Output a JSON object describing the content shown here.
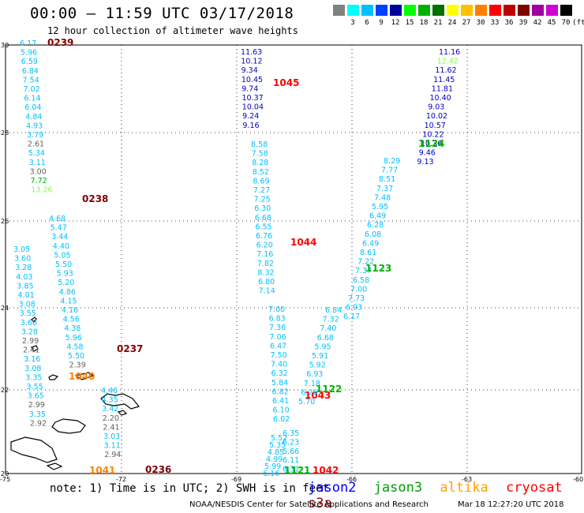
{
  "header": {
    "title": "00:00 – 11:59 UTC 03/17/2018",
    "subtitle": "12 hour collection of altimeter wave heights"
  },
  "colorbar": {
    "unit": "(ft)",
    "stops": [
      {
        "label": "",
        "color": "#808080"
      },
      {
        "label": "3",
        "color": "#00ffff"
      },
      {
        "label": "6",
        "color": "#00bfff"
      },
      {
        "label": "9",
        "color": "#0040ff"
      },
      {
        "label": "12",
        "color": "#0000a0"
      },
      {
        "label": "15",
        "color": "#00ff00"
      },
      {
        "label": "18",
        "color": "#00b000"
      },
      {
        "label": "21",
        "color": "#007000"
      },
      {
        "label": "24",
        "color": "#ffff00"
      },
      {
        "label": "27",
        "color": "#ffc000"
      },
      {
        "label": "30",
        "color": "#ff8000"
      },
      {
        "label": "33",
        "color": "#ff0000"
      },
      {
        "label": "36",
        "color": "#c00000"
      },
      {
        "label": "39",
        "color": "#800000"
      },
      {
        "label": "42",
        "color": "#a000a0"
      },
      {
        "label": "45",
        "color": "#d000d0"
      },
      {
        "label": "70",
        "color": "#000000"
      }
    ]
  },
  "axes": {
    "lon_ticks": [
      "-75",
      "-72",
      "-69",
      "-66",
      "-63",
      "-60"
    ],
    "lat_ticks": [
      "30",
      "28",
      "26",
      "24",
      "22",
      "20"
    ]
  },
  "tracks": [
    {
      "pass": "0239",
      "pass_color": "#800000",
      "points": [
        {
          "v": "6.17",
          "c": "#00bfff"
        },
        {
          "v": "5.96",
          "c": "#00bfff"
        },
        {
          "v": "6.59",
          "c": "#00bfff"
        },
        {
          "v": "6.84",
          "c": "#00bfff"
        },
        {
          "v": "7.54",
          "c": "#00bfff"
        },
        {
          "v": "7.02",
          "c": "#00bfff"
        },
        {
          "v": "6.14",
          "c": "#00bfff"
        },
        {
          "v": "6.04",
          "c": "#00bfff"
        },
        {
          "v": "4.84",
          "c": "#00bfff"
        },
        {
          "v": "4.93",
          "c": "#00bfff"
        },
        {
          "v": "3.79",
          "c": "#00bfff"
        },
        {
          "v": "2.61",
          "c": "#606060"
        },
        {
          "v": "5.34",
          "c": "#00bfff"
        },
        {
          "v": "3.11",
          "c": "#00bfff"
        },
        {
          "v": "3.00",
          "c": "#606060"
        },
        {
          "v": "7.72",
          "c": "#00b000"
        },
        {
          "v": "13.26",
          "c": "#80ff40"
        }
      ]
    },
    {
      "pass": "0238",
      "pass_color": "#800000",
      "points": [
        {
          "v": "4.68",
          "c": "#00bfff"
        },
        {
          "v": "5.47",
          "c": "#00bfff"
        },
        {
          "v": "3.44",
          "c": "#00bfff"
        },
        {
          "v": "4.40",
          "c": "#00bfff"
        },
        {
          "v": "5.05",
          "c": "#00bfff"
        },
        {
          "v": "5.50",
          "c": "#00bfff"
        },
        {
          "v": "5.93",
          "c": "#00bfff"
        },
        {
          "v": "5.20",
          "c": "#00bfff"
        },
        {
          "v": "4.86",
          "c": "#00bfff"
        },
        {
          "v": "4.15",
          "c": "#00bfff"
        },
        {
          "v": "4.16",
          "c": "#00bfff"
        },
        {
          "v": "4.56",
          "c": "#00bfff"
        },
        {
          "v": "4.38",
          "c": "#00bfff"
        },
        {
          "v": "5.96",
          "c": "#00bfff"
        },
        {
          "v": "4.58",
          "c": "#00bfff"
        },
        {
          "v": "5.50",
          "c": "#00bfff"
        },
        {
          "v": "2.39",
          "c": "#606060"
        }
      ]
    },
    {
      "pass": "0237",
      "pass_color": "#800000",
      "points": [
        {
          "v": "3.05",
          "c": "#00bfff"
        },
        {
          "v": "3.60",
          "c": "#00bfff"
        },
        {
          "v": "3.28",
          "c": "#00bfff"
        },
        {
          "v": "4.03",
          "c": "#00bfff"
        },
        {
          "v": "3.85",
          "c": "#00bfff"
        },
        {
          "v": "4.01",
          "c": "#00bfff"
        },
        {
          "v": "3.08",
          "c": "#00bfff"
        },
        {
          "v": "3.55",
          "c": "#00bfff"
        },
        {
          "v": "3.60",
          "c": "#00bfff"
        },
        {
          "v": "3.28",
          "c": "#00bfff"
        },
        {
          "v": "2.99",
          "c": "#606060"
        },
        {
          "v": "2.41",
          "c": "#606060"
        },
        {
          "v": "3.16",
          "c": "#00bfff"
        },
        {
          "v": "3.08",
          "c": "#00bfff"
        },
        {
          "v": "3.35",
          "c": "#00bfff"
        },
        {
          "v": "3.55",
          "c": "#00bfff"
        },
        {
          "v": "3.65",
          "c": "#00bfff"
        },
        {
          "v": "2.99",
          "c": "#606060"
        },
        {
          "v": "3.35",
          "c": "#00bfff"
        },
        {
          "v": "2.92",
          "c": "#606060"
        }
      ]
    },
    {
      "pass": "0236",
      "pass_color": "#800000",
      "points": [
        {
          "v": "4.46",
          "c": "#00bfff"
        },
        {
          "v": "4.35",
          "c": "#00bfff"
        },
        {
          "v": "3.42",
          "c": "#00bfff"
        },
        {
          "v": "2.20",
          "c": "#606060"
        },
        {
          "v": "2.41",
          "c": "#606060"
        },
        {
          "v": "3.03",
          "c": "#00bfff"
        },
        {
          "v": "3.11",
          "c": "#00bfff"
        },
        {
          "v": "2.94",
          "c": "#606060"
        }
      ]
    },
    {
      "pass": "1045",
      "pass_color": "#ff0000",
      "points": [
        {
          "v": "11.63",
          "c": "#0000c0"
        },
        {
          "v": "10.12",
          "c": "#0000c0"
        },
        {
          "v": "9.34",
          "c": "#0000c0"
        },
        {
          "v": "10.45",
          "c": "#0000c0"
        },
        {
          "v": "9.74",
          "c": "#0000c0"
        },
        {
          "v": "10.37",
          "c": "#0000c0"
        },
        {
          "v": "10.04",
          "c": "#0000c0"
        },
        {
          "v": "9.24",
          "c": "#0000c0"
        },
        {
          "v": "9.16",
          "c": "#0000c0"
        }
      ]
    },
    {
      "pass": "1044",
      "pass_color": "#ff0000",
      "points": [
        {
          "v": "8.58",
          "c": "#00bfff"
        },
        {
          "v": "7.58",
          "c": "#00bfff"
        },
        {
          "v": "8.28",
          "c": "#00bfff"
        },
        {
          "v": "8.52",
          "c": "#00bfff"
        },
        {
          "v": "8.69",
          "c": "#00bfff"
        },
        {
          "v": "7.27",
          "c": "#00bfff"
        },
        {
          "v": "7.25",
          "c": "#00bfff"
        },
        {
          "v": "6.30",
          "c": "#00bfff"
        },
        {
          "v": "6.68",
          "c": "#00bfff"
        },
        {
          "v": "6.55",
          "c": "#00bfff"
        },
        {
          "v": "6.76",
          "c": "#00bfff"
        },
        {
          "v": "6.20",
          "c": "#00bfff"
        },
        {
          "v": "7.16",
          "c": "#00bfff"
        },
        {
          "v": "7.82",
          "c": "#00bfff"
        },
        {
          "v": "8.32",
          "c": "#00bfff"
        },
        {
          "v": "6.80",
          "c": "#00bfff"
        },
        {
          "v": "7.14",
          "c": "#00bfff"
        }
      ]
    },
    {
      "pass": "1043",
      "pass_color": "#ff0000",
      "points": [
        {
          "v": "7.00",
          "c": "#00bfff"
        },
        {
          "v": "6.83",
          "c": "#00bfff"
        },
        {
          "v": "7.36",
          "c": "#00bfff"
        },
        {
          "v": "7.06",
          "c": "#00bfff"
        },
        {
          "v": "6.47",
          "c": "#00bfff"
        },
        {
          "v": "7.50",
          "c": "#00bfff"
        },
        {
          "v": "7.40",
          "c": "#00bfff"
        },
        {
          "v": "6.32",
          "c": "#00bfff"
        },
        {
          "v": "5.84",
          "c": "#00bfff"
        },
        {
          "v": "6.82",
          "c": "#00bfff"
        },
        {
          "v": "6.41",
          "c": "#00bfff"
        },
        {
          "v": "6.10",
          "c": "#00bfff"
        },
        {
          "v": "6.02",
          "c": "#00bfff"
        }
      ]
    },
    {
      "pass": "1042",
      "pass_color": "#ff0000",
      "points": [
        {
          "v": "5.52",
          "c": "#00bfff"
        },
        {
          "v": "5.35",
          "c": "#00bfff"
        },
        {
          "v": "4.85",
          "c": "#00bfff"
        },
        {
          "v": "4.99",
          "c": "#00bfff"
        },
        {
          "v": "5.99",
          "c": "#00bfff"
        },
        {
          "v": "6.16",
          "c": "#00bfff"
        }
      ]
    },
    {
      "pass": "1124",
      "pass_color": "#00b000",
      "points": [
        {
          "v": "11.16",
          "c": "#0000c0"
        },
        {
          "v": "12.42",
          "c": "#80ff40"
        },
        {
          "v": "11.62",
          "c": "#0000c0"
        },
        {
          "v": "11.45",
          "c": "#0000c0"
        },
        {
          "v": "11.81",
          "c": "#0000c0"
        },
        {
          "v": "10.40",
          "c": "#0000c0"
        },
        {
          "v": "9.03",
          "c": "#0000c0"
        },
        {
          "v": "10.02",
          "c": "#0000c0"
        },
        {
          "v": "10.57",
          "c": "#0000c0"
        },
        {
          "v": "10.22",
          "c": "#0000c0"
        },
        {
          "v": "10.36",
          "c": "#0000c0"
        },
        {
          "v": "9.46",
          "c": "#0000c0"
        },
        {
          "v": "9.13",
          "c": "#0000c0"
        }
      ]
    },
    {
      "pass": "1123",
      "pass_color": "#00b000",
      "points": [
        {
          "v": "8.29",
          "c": "#00bfff"
        },
        {
          "v": "7.77",
          "c": "#00bfff"
        },
        {
          "v": "8.51",
          "c": "#00bfff"
        },
        {
          "v": "7.37",
          "c": "#00bfff"
        },
        {
          "v": "7.48",
          "c": "#00bfff"
        },
        {
          "v": "5.95",
          "c": "#00bfff"
        },
        {
          "v": "6.49",
          "c": "#00bfff"
        },
        {
          "v": "6.28",
          "c": "#00bfff"
        },
        {
          "v": "6.08",
          "c": "#00bfff"
        },
        {
          "v": "6.49",
          "c": "#00bfff"
        },
        {
          "v": "8.61",
          "c": "#00bfff"
        },
        {
          "v": "7.22",
          "c": "#00bfff"
        },
        {
          "v": "7.37",
          "c": "#00bfff"
        },
        {
          "v": "6.58",
          "c": "#00bfff"
        },
        {
          "v": "7.00",
          "c": "#00bfff"
        },
        {
          "v": "7.73",
          "c": "#00bfff"
        },
        {
          "v": "6.93",
          "c": "#00bfff"
        },
        {
          "v": "6.17",
          "c": "#00bfff"
        }
      ]
    },
    {
      "pass": "1122",
      "pass_color": "#00b000",
      "points": [
        {
          "v": "6.84",
          "c": "#00bfff"
        },
        {
          "v": "7.32",
          "c": "#00bfff"
        },
        {
          "v": "7.40",
          "c": "#00bfff"
        },
        {
          "v": "6.68",
          "c": "#00bfff"
        },
        {
          "v": "5.95",
          "c": "#00bfff"
        },
        {
          "v": "5.91",
          "c": "#00bfff"
        },
        {
          "v": "5.92",
          "c": "#00bfff"
        },
        {
          "v": "6.93",
          "c": "#00bfff"
        },
        {
          "v": "7.18",
          "c": "#00bfff"
        },
        {
          "v": "6.26",
          "c": "#00bfff"
        },
        {
          "v": "5.70",
          "c": "#00bfff"
        }
      ]
    },
    {
      "pass": "1121",
      "pass_color": "#00b000",
      "points": [
        {
          "v": "6.35",
          "c": "#00bfff"
        },
        {
          "v": "6.23",
          "c": "#00bfff"
        },
        {
          "v": "5.66",
          "c": "#00bfff"
        },
        {
          "v": "6.11",
          "c": "#00bfff"
        },
        {
          "v": "6.31",
          "c": "#00bfff"
        }
      ]
    },
    {
      "pass": "1041",
      "pass_color": "#ff8000",
      "points": []
    },
    {
      "pass": "1040",
      "pass_color": "#ff8000",
      "points": []
    }
  ],
  "footer": {
    "note": "note: 1) Time is in UTC; 2) SWH is in feet",
    "legend": [
      {
        "name": "jason2",
        "color": "#0000ff"
      },
      {
        "name": "jason3",
        "color": "#00a000"
      },
      {
        "name": "altika",
        "color": "#ffa000"
      },
      {
        "name": "cryosat",
        "color": "#ff0000"
      },
      {
        "name": "s3a",
        "color": "#a00000"
      }
    ],
    "credit": "NOAA/NESDIS Center for Satellite Applications and Research",
    "timestamp": "Mar 18 12:27:20 UTC 2018"
  }
}
